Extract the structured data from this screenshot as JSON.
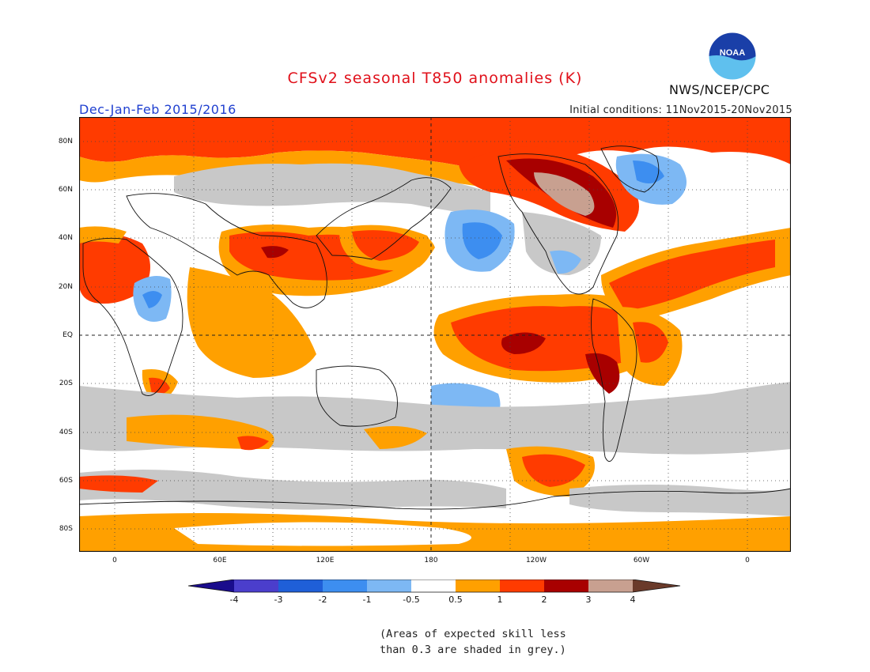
{
  "header": {
    "title": "CFSv2 seasonal T850 anomalies (K)",
    "season": "Dec-Jan-Feb 2015/2016",
    "initial_conditions": "Initial conditions: 11Nov2015-20Nov2015",
    "agency": "NWS/NCEP/CPC",
    "logo_text": "NOAA"
  },
  "map": {
    "lat_labels": [
      "80N",
      "60N",
      "40N",
      "20N",
      "EQ",
      "20S",
      "40S",
      "60S",
      "80S"
    ],
    "lon_labels": [
      "0",
      "60E",
      "120E",
      "180",
      "120W",
      "60W",
      "0"
    ]
  },
  "colorbar": {
    "tick_labels": [
      "-4",
      "-3",
      "-2",
      "-1",
      "-0.5",
      "0.5",
      "1",
      "2",
      "3",
      "4"
    ],
    "colors": {
      "lt_minus4": "#1a0c8c",
      "minus4_minus3": "#4b3ecc",
      "minus3_minus2": "#1f5fd8",
      "minus2_minus1": "#3d8ef0",
      "minus1_minus05": "#7db8f4",
      "neutral": "#ffffff",
      "p05_p1": "#ffa000",
      "p1_p2": "#ff3b00",
      "p2_p3": "#a80000",
      "p3_p4": "#c8a090",
      "gt_p4": "#6a3a2a",
      "low_skill": "#c8c8c8"
    }
  },
  "note": {
    "line1": "(Areas of expected skill less",
    "line2": "than 0.3 are shaded in grey.)"
  }
}
